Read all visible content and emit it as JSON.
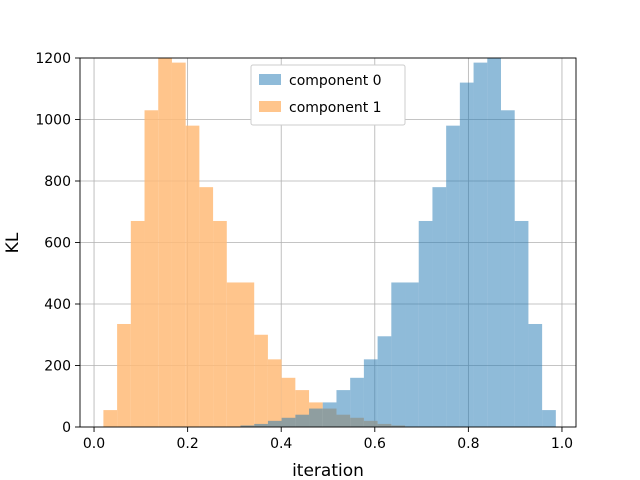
{
  "chart_data": {
    "type": "histogram",
    "xlabel": "iteration",
    "ylabel": "KL",
    "xlim": [
      -0.03,
      1.03
    ],
    "ylim": [
      0,
      1200
    ],
    "xticks": [
      0.0,
      0.2,
      0.4,
      0.6,
      0.8,
      1.0
    ],
    "xtick_labels": [
      "0.0",
      "0.2",
      "0.4",
      "0.6",
      "0.8",
      "1.0"
    ],
    "yticks": [
      0,
      200,
      400,
      600,
      800,
      1000,
      1200
    ],
    "ytick_labels": [
      "0",
      "200",
      "400",
      "600",
      "800",
      "1000",
      "1200"
    ],
    "grid": true,
    "legend_position": "top-center",
    "bin_edges": [
      0.02,
      0.0493,
      0.0786,
      0.1079,
      0.1372,
      0.1665,
      0.1958,
      0.2251,
      0.2544,
      0.2837,
      0.313,
      0.3423,
      0.3716,
      0.4009,
      0.4302,
      0.4595,
      0.4888,
      0.5181,
      0.5474,
      0.5767,
      0.606,
      0.6353,
      0.6646,
      0.6939,
      0.7232,
      0.7525,
      0.7818,
      0.8111,
      0.8404,
      0.8697,
      0.899,
      0.9283,
      0.9576,
      0.9869
    ],
    "series": [
      {
        "name": "component 1",
        "color": "#ffbb78",
        "opacity": 0.85,
        "values": [
          55,
          335,
          670,
          1030,
          1200,
          1185,
          980,
          780,
          670,
          470,
          470,
          300,
          220,
          160,
          120,
          80,
          60,
          40,
          30,
          20,
          10,
          5,
          0,
          0,
          0,
          0,
          0,
          0,
          0,
          0,
          0,
          0,
          0
        ]
      },
      {
        "name": "component 0",
        "color": "#1f77b4",
        "opacity": 0.5,
        "values": [
          0,
          0,
          0,
          0,
          0,
          0,
          0,
          0,
          0,
          0,
          5,
          10,
          20,
          30,
          40,
          60,
          80,
          120,
          160,
          220,
          295,
          470,
          470,
          670,
          780,
          980,
          1120,
          1185,
          1200,
          1030,
          670,
          335,
          55
        ]
      }
    ],
    "legend_entries": [
      "component 0",
      "component 1"
    ]
  }
}
